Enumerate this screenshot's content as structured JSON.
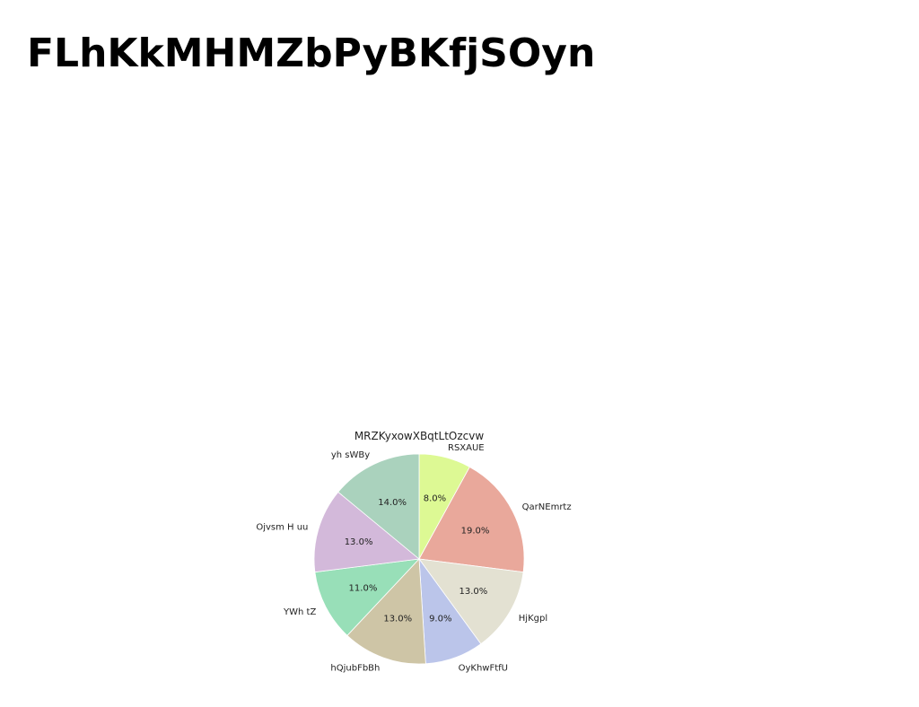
{
  "page": {
    "title": "FLhKkMHMZbPyBKfjSOyn"
  },
  "chart_data": {
    "type": "pie",
    "title": "MRZKyxowXBqtLtOzcvw",
    "start_angle_deg": 90,
    "direction": "clockwise",
    "slices": [
      {
        "label": "RSXAUE",
        "value": 8.0,
        "pct_text": "8.0%",
        "color": "#ddf994"
      },
      {
        "label": "QarNEmrtz",
        "value": 19.0,
        "pct_text": "19.0%",
        "color": "#e9a89b"
      },
      {
        "label": "HjKgpl",
        "value": 13.0,
        "pct_text": "13.0%",
        "color": "#e3e1d2"
      },
      {
        "label": "OyKhwFtfU",
        "value": 9.0,
        "pct_text": "9.0%",
        "color": "#bbc5ea"
      },
      {
        "label": "hQjubFbBh",
        "value": 13.0,
        "pct_text": "13.0%",
        "color": "#cec5a6"
      },
      {
        "label": "YWh tZ",
        "value": 11.0,
        "pct_text": "11.0%",
        "color": "#98dfb8"
      },
      {
        "label": "Ojvsm H uu",
        "value": 13.0,
        "pct_text": "13.0%",
        "color": "#d3b9da"
      },
      {
        "label": "yh sWBy",
        "value": 14.0,
        "pct_text": "14.0%",
        "color": "#aad2bd"
      }
    ]
  }
}
